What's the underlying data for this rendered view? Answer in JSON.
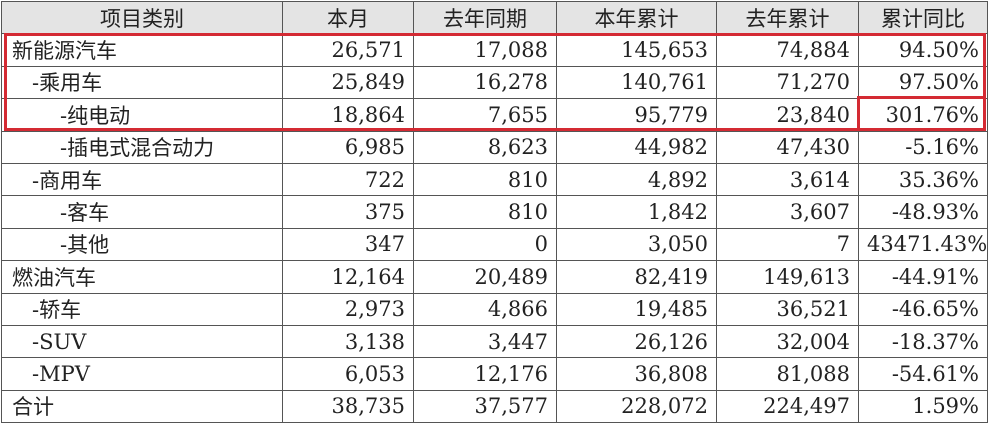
{
  "headers": [
    "项目类别",
    "本月",
    "去年同期",
    "本年累计",
    "去年累计",
    "累计同比"
  ],
  "highlight_color": "#d42a33",
  "rows": [
    {
      "label": "新能源汽车",
      "level": 1,
      "values": [
        "26,571",
        "17,088",
        "145,653",
        "74,884",
        "94.50%"
      ]
    },
    {
      "label": "-乘用车",
      "level": 2,
      "values": [
        "25,849",
        "16,278",
        "140,761",
        "71,270",
        "97.50%"
      ]
    },
    {
      "label": "-纯电动",
      "level": 3,
      "values": [
        "18,864",
        "7,655",
        "95,779",
        "23,840",
        "301.76%"
      ]
    },
    {
      "label": "-插电式混合动力",
      "level": 3,
      "values": [
        "6,985",
        "8,623",
        "44,982",
        "47,430",
        "-5.16%"
      ]
    },
    {
      "label": "-商用车",
      "level": 2,
      "values": [
        "722",
        "810",
        "4,892",
        "3,614",
        "35.36%"
      ]
    },
    {
      "label": "-客车",
      "level": 3,
      "values": [
        "375",
        "810",
        "1,842",
        "3,607",
        "-48.93%"
      ]
    },
    {
      "label": "-其他",
      "level": 3,
      "values": [
        "347",
        "0",
        "3,050",
        "7",
        "43471.43%"
      ]
    },
    {
      "label": "燃油汽车",
      "level": 1,
      "values": [
        "12,164",
        "20,489",
        "82,419",
        "149,613",
        "-44.91%"
      ]
    },
    {
      "label": "-轿车",
      "level": 2,
      "values": [
        "2,973",
        "4,866",
        "19,485",
        "36,521",
        "-46.65%"
      ]
    },
    {
      "label": "-SUV",
      "level": 2,
      "values": [
        "3,138",
        "3,447",
        "26,126",
        "32,004",
        "-18.37%"
      ]
    },
    {
      "label": "-MPV",
      "level": 2,
      "values": [
        "6,053",
        "12,176",
        "36,808",
        "81,088",
        "-54.61%"
      ]
    },
    {
      "label": "合计",
      "level": 1,
      "values": [
        "38,735",
        "37,577",
        "228,072",
        "224,497",
        "1.59%"
      ]
    }
  ]
}
